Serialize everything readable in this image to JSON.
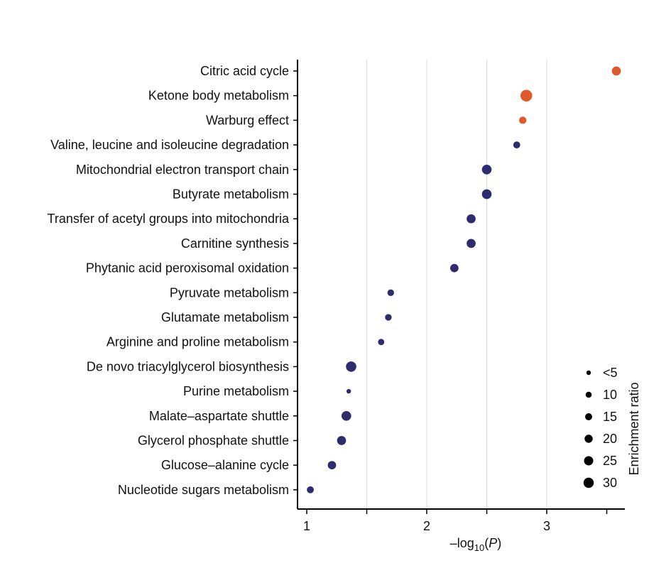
{
  "chart_data": {
    "type": "scatter",
    "title": "",
    "xlabel": {
      "prefix": "–log",
      "sub": "10",
      "inner_open": "(",
      "italic": "P",
      "inner_close": ")"
    },
    "ylabel": "",
    "xlim": [
      0.93,
      3.7
    ],
    "xticks": [
      1,
      1.5,
      2,
      2.5,
      3,
      3.5
    ],
    "xtick_labels": [
      "1",
      "",
      "2",
      "",
      "3",
      ""
    ],
    "grid_x": [
      1.5,
      2,
      2.5,
      3
    ],
    "categories": [
      "Citric acid cycle",
      "Ketone body metabolism",
      "Warburg effect",
      "Valine, leucine and isoleucine degradation",
      "Mitochondrial electron transport chain",
      "Butyrate metabolism",
      "Transfer of acetyl groups into mitochondria",
      "Carnitine synthesis",
      "Phytanic acid peroxisomal oxidation",
      "Pyruvate metabolism",
      "Glutamate metabolism",
      "Arginine and proline metabolism",
      "De novo triacylglycerol biosynthesis",
      "Purine metabolism",
      "Malate–aspartate shuttle",
      "Glycerol phosphate shuttle",
      "Glucose–alanine cycle",
      "Nucleotide sugars metabolism"
    ],
    "points": [
      {
        "x": 3.58,
        "size": 16,
        "color": "#e0592a"
      },
      {
        "x": 2.83,
        "size": 24,
        "color": "#e0592a"
      },
      {
        "x": 2.8,
        "size": 11,
        "color": "#e0592a"
      },
      {
        "x": 2.75,
        "size": 10,
        "color": "#2e2c6e"
      },
      {
        "x": 2.5,
        "size": 18,
        "color": "#2e2c6e"
      },
      {
        "x": 2.5,
        "size": 18,
        "color": "#2e2c6e"
      },
      {
        "x": 2.37,
        "size": 16,
        "color": "#2e2c6e"
      },
      {
        "x": 2.37,
        "size": 16,
        "color": "#2e2c6e"
      },
      {
        "x": 2.23,
        "size": 14,
        "color": "#2e2c6e"
      },
      {
        "x": 1.7,
        "size": 9,
        "color": "#2e2c6e"
      },
      {
        "x": 1.68,
        "size": 9,
        "color": "#2e2c6e"
      },
      {
        "x": 1.62,
        "size": 8,
        "color": "#2e2c6e"
      },
      {
        "x": 1.37,
        "size": 20,
        "color": "#2e2c6e"
      },
      {
        "x": 1.35,
        "size": 3,
        "color": "#2e2c6e"
      },
      {
        "x": 1.33,
        "size": 18,
        "color": "#2e2c6e"
      },
      {
        "x": 1.29,
        "size": 16,
        "color": "#2e2c6e"
      },
      {
        "x": 1.21,
        "size": 14,
        "color": "#2e2c6e"
      },
      {
        "x": 1.03,
        "size": 10,
        "color": "#2e2c6e"
      }
    ],
    "size_legend": {
      "title": "Enrichment ratio",
      "entries": [
        {
          "label": "<5",
          "size": 3
        },
        {
          "label": "10",
          "size": 10
        },
        {
          "label": "15",
          "size": 15
        },
        {
          "label": "20",
          "size": 20
        },
        {
          "label": "25",
          "size": 25
        },
        {
          "label": "30",
          "size": 30
        }
      ],
      "color": "#000000",
      "placement": "bottom-right"
    },
    "colors": {
      "highlight": "#e0592a",
      "default": "#2e2c6e",
      "grid": "#d9d9d9",
      "axis": "#000000"
    }
  }
}
